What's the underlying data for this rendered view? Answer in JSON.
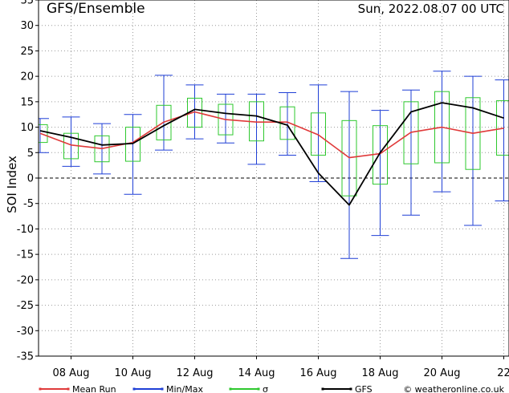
{
  "header": {
    "left_title": "GFS/Ensemble",
    "right_title": "Sun, 2022.08.07   00 UTC"
  },
  "footer": {
    "credit": "© weatheronline.co.uk"
  },
  "colors": {
    "mean": "#e03a3a",
    "minmax": "#1f3fd6",
    "sigma": "#2ec82e",
    "gfs": "#000000",
    "grid": "#9a9a9a"
  },
  "chart_data": {
    "type": "line",
    "ylabel": "SOI Index",
    "ylim": [
      -35,
      35
    ],
    "yticks": [
      -35,
      -30,
      -25,
      -20,
      -15,
      -10,
      -5,
      0,
      5,
      10,
      15,
      20,
      25,
      30,
      35
    ],
    "xlim": [
      0,
      15
    ],
    "xticks": [
      {
        "x": 1,
        "label": "08 Aug"
      },
      {
        "x": 3,
        "label": "10 Aug"
      },
      {
        "x": 5,
        "label": "12 Aug"
      },
      {
        "x": 7,
        "label": "14 Aug"
      },
      {
        "x": 9,
        "label": "16 Aug"
      },
      {
        "x": 11,
        "label": "18 Aug"
      },
      {
        "x": 13,
        "label": "20 Aug"
      },
      {
        "x": 15,
        "label": "22"
      }
    ],
    "legend": [
      {
        "key": "mean",
        "label": "Mean Run"
      },
      {
        "key": "minmax",
        "label": "Min/Max"
      },
      {
        "key": "sigma",
        "label": "σ"
      },
      {
        "key": "gfs",
        "label": "GFS"
      }
    ],
    "x": [
      0,
      1,
      2,
      3,
      4,
      5,
      6,
      7,
      8,
      9,
      10,
      11,
      12,
      13,
      14,
      15
    ],
    "series": [
      {
        "name": "Mean Run",
        "key": "mean",
        "values": [
          8.8,
          6.5,
          5.8,
          7,
          11,
          13,
          11.5,
          11,
          11,
          8.5,
          4,
          4.8,
          9,
          10,
          8.8,
          9.8
        ]
      },
      {
        "name": "GFS",
        "key": "gfs",
        "values": [
          9.3,
          8,
          6.5,
          6.8,
          10.3,
          13.5,
          12.7,
          12.2,
          10.4,
          1,
          -5.3,
          5,
          13,
          14.8,
          13.8,
          11.8
        ]
      }
    ],
    "minmax": [
      {
        "x": 0,
        "min": 5,
        "max": 11.7
      },
      {
        "x": 1,
        "min": 2.3,
        "max": 12
      },
      {
        "x": 2,
        "min": 0.8,
        "max": 10.7
      },
      {
        "x": 3,
        "min": -3.2,
        "max": 12.5
      },
      {
        "x": 4,
        "min": 5.5,
        "max": 20.2
      },
      {
        "x": 5,
        "min": 7.7,
        "max": 18.3
      },
      {
        "x": 6,
        "min": 6.9,
        "max": 16.5
      },
      {
        "x": 7,
        "min": 2.7,
        "max": 16.5
      },
      {
        "x": 8,
        "min": 4.5,
        "max": 16.8
      },
      {
        "x": 9,
        "min": -0.7,
        "max": 18.3
      },
      {
        "x": 10,
        "min": -15.8,
        "max": 17
      },
      {
        "x": 11,
        "min": -11.3,
        "max": 13.3
      },
      {
        "x": 12,
        "min": -7.3,
        "max": 17.3
      },
      {
        "x": 13,
        "min": -2.7,
        "max": 21
      },
      {
        "x": 14,
        "min": -9.3,
        "max": 20
      },
      {
        "x": 15,
        "min": -4.5,
        "max": 19.3
      }
    ],
    "sigma": [
      {
        "x": 0,
        "low": 7,
        "high": 10.5
      },
      {
        "x": 1,
        "low": 3.8,
        "high": 8.8
      },
      {
        "x": 2,
        "low": 3.2,
        "high": 8.3
      },
      {
        "x": 3,
        "low": 3.3,
        "high": 10
      },
      {
        "x": 4,
        "low": 7.5,
        "high": 14.3
      },
      {
        "x": 5,
        "low": 10,
        "high": 15.7
      },
      {
        "x": 6,
        "low": 8.5,
        "high": 14.5
      },
      {
        "x": 7,
        "low": 7.3,
        "high": 15
      },
      {
        "x": 8,
        "low": 7.6,
        "high": 14
      },
      {
        "x": 9,
        "low": 4.5,
        "high": 12.8
      },
      {
        "x": 10,
        "low": -3.5,
        "high": 11.3
      },
      {
        "x": 11,
        "low": -1.2,
        "high": 10.3
      },
      {
        "x": 12,
        "low": 2.8,
        "high": 15
      },
      {
        "x": 13,
        "low": 3,
        "high": 17
      },
      {
        "x": 14,
        "low": 1.7,
        "high": 15.8
      },
      {
        "x": 15,
        "low": 4.5,
        "high": 15.2
      }
    ]
  }
}
